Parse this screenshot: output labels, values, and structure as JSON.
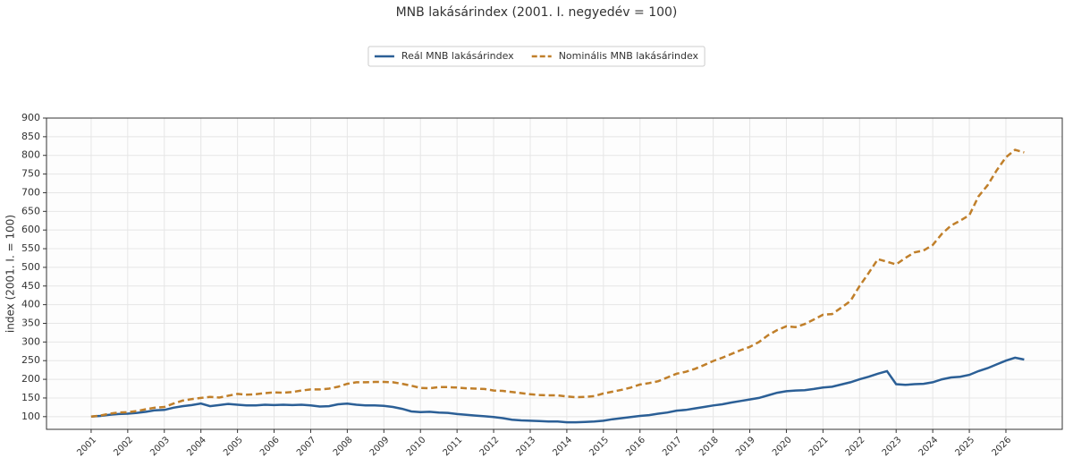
{
  "chart_data": {
    "type": "line",
    "title": "MNB lakásárindex (2001. I. negyedév = 100)",
    "y_label": "index (2001. I. = 100)",
    "x": [
      2001,
      2001.25,
      2001.5,
      2001.75,
      2002,
      2002.25,
      2002.5,
      2002.75,
      2003,
      2003.25,
      2003.5,
      2003.75,
      2004,
      2004.25,
      2004.5,
      2004.75,
      2005,
      2005.25,
      2005.5,
      2005.75,
      2006,
      2006.25,
      2006.5,
      2006.75,
      2007,
      2007.25,
      2007.5,
      2007.75,
      2008,
      2008.25,
      2008.5,
      2008.75,
      2009,
      2009.25,
      2009.5,
      2009.75,
      2010,
      2010.25,
      2010.5,
      2010.75,
      2011,
      2011.25,
      2011.5,
      2011.75,
      2012,
      2012.25,
      2012.5,
      2012.75,
      2013,
      2013.25,
      2013.5,
      2013.75,
      2014,
      2014.25,
      2014.5,
      2014.75,
      2015,
      2015.25,
      2015.5,
      2015.75,
      2016,
      2016.25,
      2016.5,
      2016.75,
      2017,
      2017.25,
      2017.5,
      2017.75,
      2018,
      2018.25,
      2018.5,
      2018.75,
      2019,
      2019.25,
      2019.5,
      2019.75,
      2020,
      2020.25,
      2020.5,
      2020.75,
      2021,
      2021.25,
      2021.5,
      2021.75,
      2022,
      2022.25,
      2022.5,
      2022.75,
      2023,
      2023.25,
      2023.5,
      2023.75,
      2024,
      2024.25,
      2024.5,
      2024.75,
      2025,
      2025.25,
      2025.5,
      2025.75,
      2026,
      2026.25,
      2026.5
    ],
    "series": [
      {
        "name": "Reál MNB lakásárindex",
        "color": "#2b5f96",
        "dash": false,
        "values": [
          100,
          102,
          105,
          107,
          108,
          110,
          113,
          117,
          118,
          124,
          128,
          131,
          135,
          128,
          131,
          134,
          132,
          130,
          130,
          132,
          131,
          132,
          131,
          132,
          130,
          127,
          128,
          133,
          135,
          132,
          130,
          130,
          129,
          126,
          121,
          114,
          112,
          113,
          111,
          110,
          107,
          105,
          103,
          101,
          99,
          96,
          92,
          90,
          89,
          88,
          87,
          87,
          85,
          85,
          86,
          87,
          89,
          93,
          96,
          99,
          102,
          104,
          108,
          111,
          116,
          118,
          122,
          126,
          130,
          133,
          138,
          142,
          146,
          150,
          157,
          164,
          168,
          170,
          171,
          174,
          178,
          180,
          186,
          192,
          200,
          207,
          215,
          222,
          187,
          185,
          187,
          188,
          192,
          200,
          205,
          207,
          212,
          222,
          230,
          240,
          250,
          258,
          253
        ]
      },
      {
        "name": "Nominális MNB lakásárindex",
        "color": "#c07f2a",
        "dash": true,
        "values": [
          100,
          103,
          108,
          111,
          112,
          115,
          120,
          124,
          126,
          135,
          143,
          147,
          150,
          153,
          151,
          156,
          161,
          159,
          160,
          163,
          165,
          164,
          166,
          170,
          173,
          173,
          175,
          180,
          188,
          192,
          192,
          193,
          193,
          192,
          188,
          183,
          177,
          176,
          179,
          179,
          178,
          176,
          175,
          174,
          170,
          169,
          166,
          163,
          160,
          158,
          157,
          157,
          154,
          152,
          153,
          155,
          162,
          167,
          172,
          178,
          186,
          190,
          195,
          205,
          215,
          220,
          228,
          238,
          249,
          258,
          268,
          278,
          287,
          300,
          318,
          332,
          342,
          340,
          348,
          360,
          373,
          375,
          392,
          410,
          450,
          485,
          522,
          515,
          508,
          525,
          540,
          545,
          560,
          590,
          612,
          625,
          640,
          690,
          720,
          760,
          795,
          815,
          808
        ]
      }
    ],
    "xlim": [
      1999.78,
      2027.54
    ],
    "xticks": [
      2001,
      2002,
      2003,
      2004,
      2005,
      2006,
      2007,
      2008,
      2009,
      2010,
      2011,
      2012,
      2013,
      2014,
      2015,
      2016,
      2017,
      2018,
      2019,
      2020,
      2021,
      2022,
      2023,
      2024,
      2025,
      2026
    ],
    "ylim": [
      66,
      900
    ],
    "yticks": [
      100,
      150,
      200,
      250,
      300,
      350,
      400,
      450,
      500,
      550,
      600,
      650,
      700,
      750,
      800,
      850,
      900
    ],
    "grid": true,
    "legend": "top"
  }
}
